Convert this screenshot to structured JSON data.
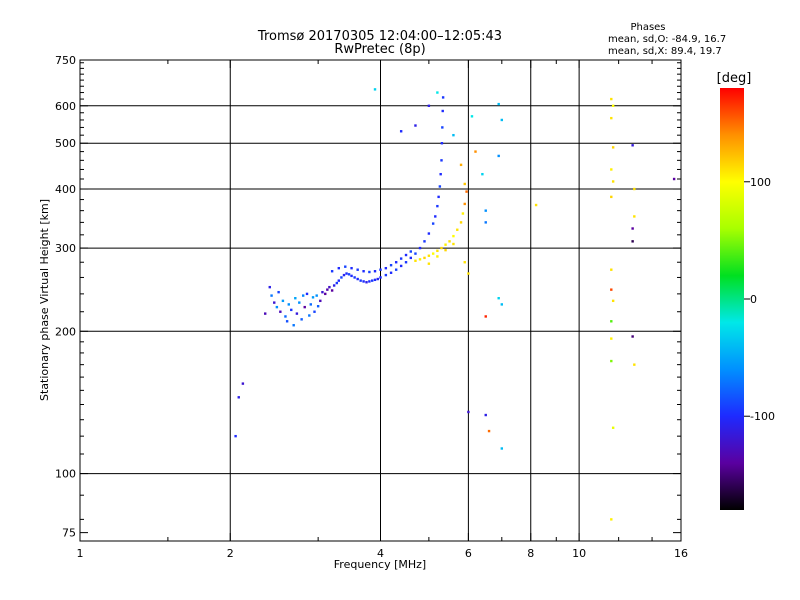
{
  "chart_data": {
    "type": "scatter",
    "title": "Tromsø 20170305 12:04:00–12:05:43",
    "subtitle": "RwPretec (8p)",
    "xlabel": "Frequency [MHz]",
    "ylabel": "Stationary phase Virtual Height [km]",
    "x_scale": "log",
    "y_scale": "log",
    "xlim": [
      1,
      16
    ],
    "ylim": [
      72,
      750
    ],
    "x_ticks": [
      1,
      2,
      4,
      6,
      8,
      10,
      16
    ],
    "y_ticks": [
      75,
      100,
      200,
      300,
      400,
      500,
      600,
      750
    ],
    "grid": true,
    "legend": {
      "title": "Phases",
      "lines": [
        "mean, sd,O: -84.9, 16.7",
        "mean, sd,X: 89.4, 19.7"
      ]
    },
    "colorbar": {
      "label": "[deg]",
      "range": [
        -180,
        180
      ],
      "ticks": [
        100,
        0,
        -100
      ],
      "colors": [
        "#000000",
        "#5a00a0",
        "#1e2aff",
        "#0090ff",
        "#00e8e8",
        "#00e020",
        "#a8ff00",
        "#ffff00",
        "#ff9000",
        "#ff0000"
      ]
    },
    "series": [
      {
        "values": [
          {
            "x": 2.4,
            "y": 248,
            "v": -110
          },
          {
            "x": 2.42,
            "y": 238,
            "v": -70
          },
          {
            "x": 2.45,
            "y": 230,
            "v": -120
          },
          {
            "x": 2.48,
            "y": 225,
            "v": -60
          },
          {
            "x": 2.5,
            "y": 242,
            "v": -90
          },
          {
            "x": 2.52,
            "y": 220,
            "v": -130
          },
          {
            "x": 2.55,
            "y": 232,
            "v": -55
          },
          {
            "x": 2.58,
            "y": 215,
            "v": -75
          },
          {
            "x": 2.6,
            "y": 210,
            "v": -85
          },
          {
            "x": 2.62,
            "y": 228,
            "v": -60
          },
          {
            "x": 2.65,
            "y": 222,
            "v": -95
          },
          {
            "x": 2.68,
            "y": 206,
            "v": -70
          },
          {
            "x": 2.7,
            "y": 235,
            "v": -50
          },
          {
            "x": 2.72,
            "y": 218,
            "v": -115
          },
          {
            "x": 2.75,
            "y": 230,
            "v": -60
          },
          {
            "x": 2.78,
            "y": 212,
            "v": -80
          },
          {
            "x": 2.8,
            "y": 238,
            "v": -65
          },
          {
            "x": 2.82,
            "y": 225,
            "v": -140
          },
          {
            "x": 2.85,
            "y": 240,
            "v": -100
          },
          {
            "x": 2.88,
            "y": 216,
            "v": -70
          },
          {
            "x": 2.9,
            "y": 228,
            "v": -75
          },
          {
            "x": 2.93,
            "y": 236,
            "v": -55
          },
          {
            "x": 2.95,
            "y": 220,
            "v": -90
          },
          {
            "x": 2.98,
            "y": 238,
            "v": -60
          },
          {
            "x": 3.0,
            "y": 226,
            "v": -80
          },
          {
            "x": 3.03,
            "y": 232,
            "v": -130
          },
          {
            "x": 3.06,
            "y": 242,
            "v": -120
          },
          {
            "x": 3.1,
            "y": 240,
            "v": -140
          },
          {
            "x": 3.13,
            "y": 245,
            "v": -135
          },
          {
            "x": 3.16,
            "y": 248,
            "v": -125
          },
          {
            "x": 3.2,
            "y": 244,
            "v": -140
          },
          {
            "x": 3.23,
            "y": 250,
            "v": -110
          },
          {
            "x": 3.27,
            "y": 253,
            "v": -95
          },
          {
            "x": 3.3,
            "y": 256,
            "v": -100
          },
          {
            "x": 3.34,
            "y": 260,
            "v": -90
          },
          {
            "x": 3.38,
            "y": 263,
            "v": -105
          },
          {
            "x": 3.42,
            "y": 265,
            "v": -100
          },
          {
            "x": 3.46,
            "y": 264,
            "v": -90
          },
          {
            "x": 3.5,
            "y": 262,
            "v": -100
          },
          {
            "x": 3.55,
            "y": 260,
            "v": -95
          },
          {
            "x": 3.6,
            "y": 258,
            "v": -100
          },
          {
            "x": 3.65,
            "y": 256,
            "v": -95
          },
          {
            "x": 3.7,
            "y": 255,
            "v": -100
          },
          {
            "x": 3.75,
            "y": 254,
            "v": -110
          },
          {
            "x": 3.8,
            "y": 255,
            "v": -100
          },
          {
            "x": 3.85,
            "y": 256,
            "v": -95
          },
          {
            "x": 3.9,
            "y": 257,
            "v": -100
          },
          {
            "x": 3.95,
            "y": 258,
            "v": -105
          },
          {
            "x": 4.0,
            "y": 260,
            "v": -100
          },
          {
            "x": 4.1,
            "y": 263,
            "v": -95
          },
          {
            "x": 4.2,
            "y": 266,
            "v": -100
          },
          {
            "x": 4.3,
            "y": 270,
            "v": -90
          },
          {
            "x": 4.4,
            "y": 275,
            "v": -100
          },
          {
            "x": 4.5,
            "y": 280,
            "v": -95
          },
          {
            "x": 4.6,
            "y": 286,
            "v": -100
          },
          {
            "x": 4.7,
            "y": 292,
            "v": -90
          },
          {
            "x": 4.8,
            "y": 300,
            "v": -100
          },
          {
            "x": 4.9,
            "y": 310,
            "v": -95
          },
          {
            "x": 5.0,
            "y": 322,
            "v": -100
          },
          {
            "x": 5.1,
            "y": 338,
            "v": -90
          },
          {
            "x": 5.15,
            "y": 350,
            "v": -100
          },
          {
            "x": 5.2,
            "y": 368,
            "v": -95
          },
          {
            "x": 5.23,
            "y": 385,
            "v": -100
          },
          {
            "x": 5.26,
            "y": 405,
            "v": -90
          },
          {
            "x": 5.28,
            "y": 430,
            "v": -100
          },
          {
            "x": 5.3,
            "y": 460,
            "v": -95
          },
          {
            "x": 5.31,
            "y": 500,
            "v": -100
          },
          {
            "x": 5.32,
            "y": 540,
            "v": -90
          },
          {
            "x": 5.33,
            "y": 585,
            "v": -100
          },
          {
            "x": 5.34,
            "y": 625,
            "v": -95
          },
          {
            "x": 3.2,
            "y": 268,
            "v": -95
          },
          {
            "x": 3.3,
            "y": 272,
            "v": -100
          },
          {
            "x": 3.4,
            "y": 274,
            "v": -90
          },
          {
            "x": 3.5,
            "y": 272,
            "v": -100
          },
          {
            "x": 3.6,
            "y": 270,
            "v": -95
          },
          {
            "x": 3.7,
            "y": 268,
            "v": -100
          },
          {
            "x": 3.8,
            "y": 267,
            "v": -90
          },
          {
            "x": 3.9,
            "y": 268,
            "v": -100
          },
          {
            "x": 4.0,
            "y": 270,
            "v": -95
          },
          {
            "x": 4.1,
            "y": 272,
            "v": -100
          },
          {
            "x": 4.2,
            "y": 276,
            "v": -90
          },
          {
            "x": 4.3,
            "y": 280,
            "v": -100
          },
          {
            "x": 4.4,
            "y": 285,
            "v": -95
          },
          {
            "x": 4.5,
            "y": 290,
            "v": -100
          },
          {
            "x": 4.6,
            "y": 295,
            "v": -90
          },
          {
            "x": 4.7,
            "y": 282,
            "v": 110
          },
          {
            "x": 4.8,
            "y": 284,
            "v": 105
          },
          {
            "x": 4.9,
            "y": 286,
            "v": 115
          },
          {
            "x": 5.0,
            "y": 289,
            "v": 110
          },
          {
            "x": 5.1,
            "y": 292,
            "v": 100
          },
          {
            "x": 5.2,
            "y": 296,
            "v": 110
          },
          {
            "x": 5.3,
            "y": 300,
            "v": 115
          },
          {
            "x": 5.4,
            "y": 305,
            "v": 105
          },
          {
            "x": 5.5,
            "y": 310,
            "v": 110
          },
          {
            "x": 5.6,
            "y": 318,
            "v": 100
          },
          {
            "x": 5.7,
            "y": 328,
            "v": 110
          },
          {
            "x": 5.8,
            "y": 340,
            "v": 115
          },
          {
            "x": 5.85,
            "y": 355,
            "v": 105
          },
          {
            "x": 5.9,
            "y": 372,
            "v": 140
          },
          {
            "x": 5.95,
            "y": 395,
            "v": 150
          },
          {
            "x": 5.0,
            "y": 278,
            "v": 110
          },
          {
            "x": 5.2,
            "y": 288,
            "v": 105
          },
          {
            "x": 5.4,
            "y": 297,
            "v": 115
          },
          {
            "x": 5.6,
            "y": 306,
            "v": 110
          },
          {
            "x": 3.9,
            "y": 650,
            "v": -30
          },
          {
            "x": 4.4,
            "y": 530,
            "v": -100
          },
          {
            "x": 4.7,
            "y": 545,
            "v": -110
          },
          {
            "x": 5.0,
            "y": 600,
            "v": -110
          },
          {
            "x": 5.2,
            "y": 640,
            "v": -20
          },
          {
            "x": 5.6,
            "y": 520,
            "v": -40
          },
          {
            "x": 5.8,
            "y": 450,
            "v": 130
          },
          {
            "x": 5.9,
            "y": 410,
            "v": 120
          },
          {
            "x": 6.1,
            "y": 570,
            "v": -20
          },
          {
            "x": 6.2,
            "y": 480,
            "v": 140
          },
          {
            "x": 6.4,
            "y": 430,
            "v": -30
          },
          {
            "x": 6.5,
            "y": 360,
            "v": -60
          },
          {
            "x": 6.9,
            "y": 605,
            "v": -40
          },
          {
            "x": 6.9,
            "y": 470,
            "v": -60
          },
          {
            "x": 7.0,
            "y": 560,
            "v": -40
          },
          {
            "x": 6.5,
            "y": 340,
            "v": -70
          },
          {
            "x": 6.9,
            "y": 235,
            "v": -30
          },
          {
            "x": 7.0,
            "y": 228,
            "v": -40
          },
          {
            "x": 6.5,
            "y": 215,
            "v": 170
          },
          {
            "x": 8.2,
            "y": 370,
            "v": 110
          },
          {
            "x": 6.5,
            "y": 133,
            "v": -110
          },
          {
            "x": 6.6,
            "y": 123,
            "v": 150
          },
          {
            "x": 7.0,
            "y": 113,
            "v": -40
          },
          {
            "x": 6.0,
            "y": 135,
            "v": -120
          },
          {
            "x": 5.9,
            "y": 280,
            "v": 110
          },
          {
            "x": 6.0,
            "y": 265,
            "v": 110
          },
          {
            "x": 11.6,
            "y": 620,
            "v": 110
          },
          {
            "x": 11.7,
            "y": 600,
            "v": 100
          },
          {
            "x": 11.6,
            "y": 565,
            "v": 110
          },
          {
            "x": 11.7,
            "y": 490,
            "v": 115
          },
          {
            "x": 11.6,
            "y": 440,
            "v": 105
          },
          {
            "x": 11.7,
            "y": 415,
            "v": 110
          },
          {
            "x": 11.6,
            "y": 385,
            "v": 115
          },
          {
            "x": 11.6,
            "y": 270,
            "v": 110
          },
          {
            "x": 11.6,
            "y": 245,
            "v": 160
          },
          {
            "x": 11.7,
            "y": 232,
            "v": 110
          },
          {
            "x": 11.6,
            "y": 210,
            "v": 40
          },
          {
            "x": 11.6,
            "y": 193,
            "v": 105
          },
          {
            "x": 11.6,
            "y": 173,
            "v": 50
          },
          {
            "x": 11.7,
            "y": 125,
            "v": 90
          },
          {
            "x": 11.6,
            "y": 80,
            "v": 105
          },
          {
            "x": 12.8,
            "y": 495,
            "v": -115
          },
          {
            "x": 12.8,
            "y": 330,
            "v": -140
          },
          {
            "x": 12.8,
            "y": 310,
            "v": -160
          },
          {
            "x": 12.9,
            "y": 400,
            "v": 110
          },
          {
            "x": 12.9,
            "y": 350,
            "v": 110
          },
          {
            "x": 12.8,
            "y": 195,
            "v": -150
          },
          {
            "x": 12.9,
            "y": 170,
            "v": 110
          },
          {
            "x": 15.5,
            "y": 420,
            "v": -140
          },
          {
            "x": 2.05,
            "y": 120,
            "v": -100
          },
          {
            "x": 2.08,
            "y": 145,
            "v": -110
          },
          {
            "x": 2.12,
            "y": 155,
            "v": -120
          },
          {
            "x": 2.35,
            "y": 218,
            "v": -130
          }
        ]
      }
    ]
  }
}
